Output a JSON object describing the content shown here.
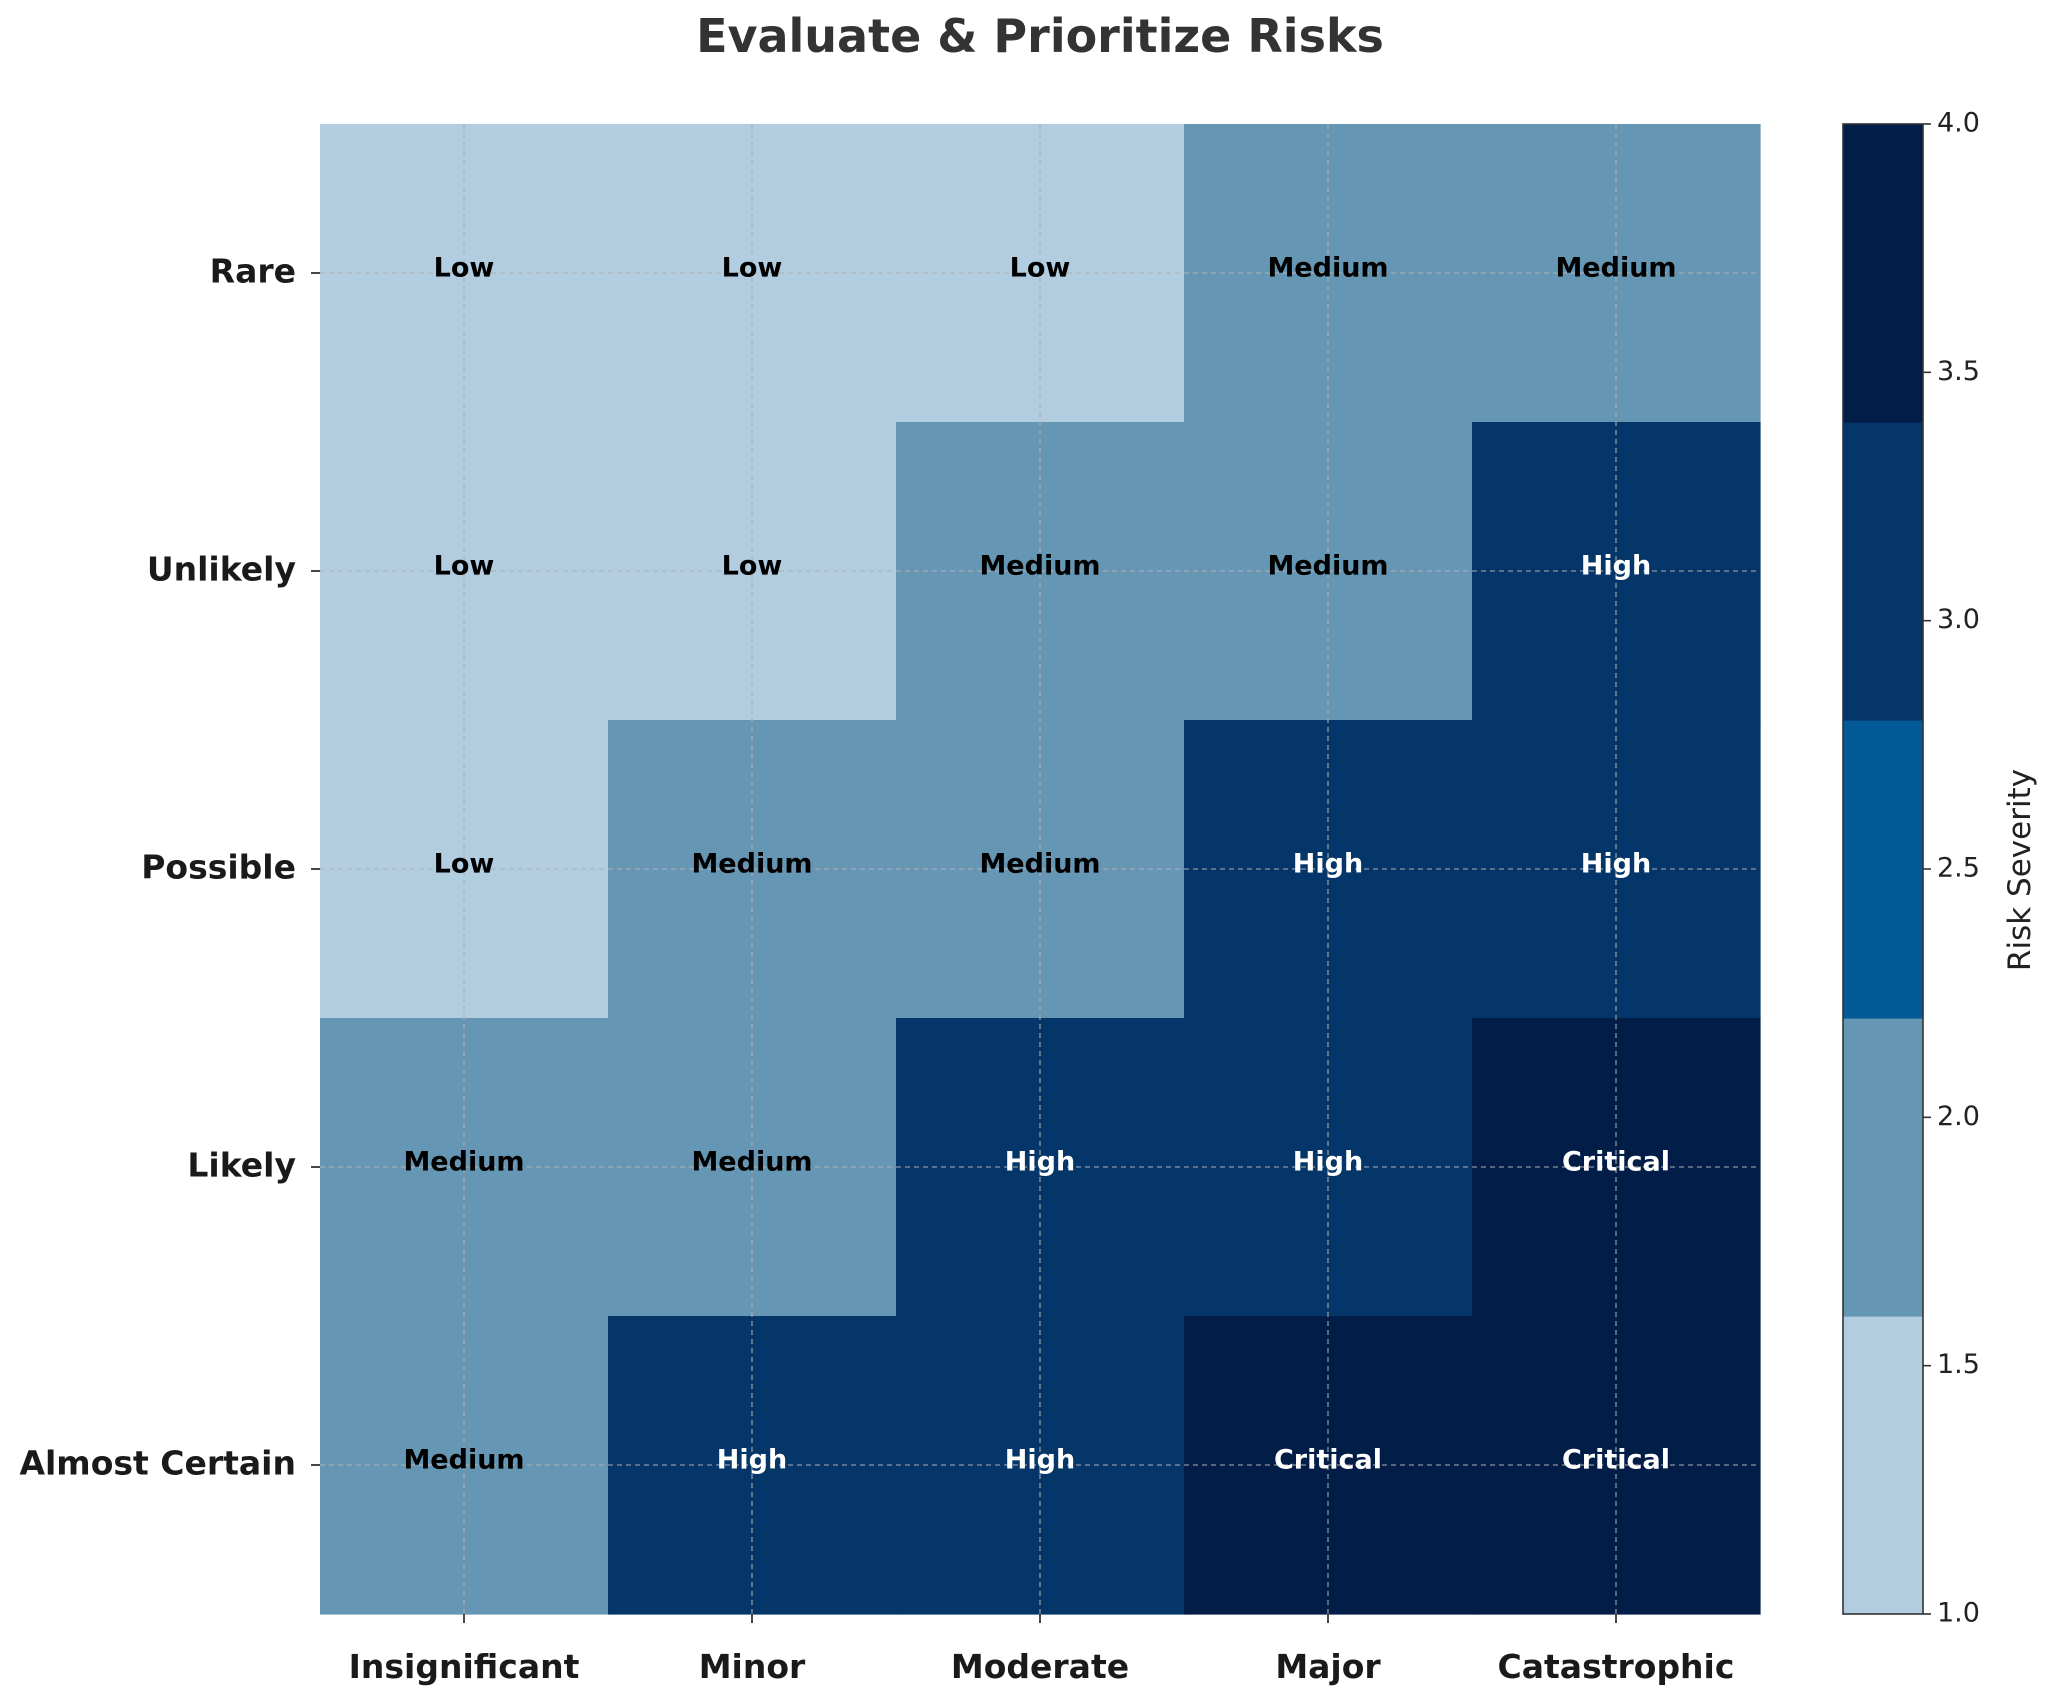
{
  "chart_data": {
    "type": "heatmap",
    "title": "Evaluate & Prioritize Risks",
    "x_categories": [
      "Insignificant",
      "Minor",
      "Moderate",
      "Major",
      "Catastrophic"
    ],
    "y_categories": [
      "Rare",
      "Unlikely",
      "Possible",
      "Likely",
      "Almost Certain"
    ],
    "values": [
      [
        1,
        1,
        1,
        2,
        2
      ],
      [
        1,
        1,
        2,
        2,
        3
      ],
      [
        1,
        2,
        2,
        3,
        3
      ],
      [
        2,
        2,
        3,
        3,
        4
      ],
      [
        2,
        3,
        3,
        4,
        4
      ]
    ],
    "labels": [
      [
        "Low",
        "Low",
        "Low",
        "Medium",
        "Medium"
      ],
      [
        "Low",
        "Low",
        "Medium",
        "Medium",
        "High"
      ],
      [
        "Low",
        "Medium",
        "Medium",
        "High",
        "High"
      ],
      [
        "Medium",
        "Medium",
        "High",
        "High",
        "Critical"
      ],
      [
        "Medium",
        "High",
        "High",
        "Critical",
        "Critical"
      ]
    ],
    "colorbar": {
      "label": "Risk Severity",
      "range": [
        1.0,
        4.0
      ],
      "ticks": [
        "1.0",
        "1.5",
        "2.0",
        "2.5",
        "3.0",
        "3.5",
        "4.0"
      ],
      "bands": [
        {
          "from": 1.0,
          "to": 1.6,
          "color": "#b2cce0"
        },
        {
          "from": 1.6,
          "to": 2.2,
          "color": "#6596b3"
        },
        {
          "from": 2.2,
          "to": 2.8,
          "color": "#035a96"
        },
        {
          "from": 2.8,
          "to": 3.4,
          "color": "#04366a"
        },
        {
          "from": 3.4,
          "to": 4.0,
          "color": "#021d47"
        }
      ]
    },
    "label_color_dark_text": "#000000",
    "label_color_light_text": "#ffffff",
    "grid": true
  }
}
